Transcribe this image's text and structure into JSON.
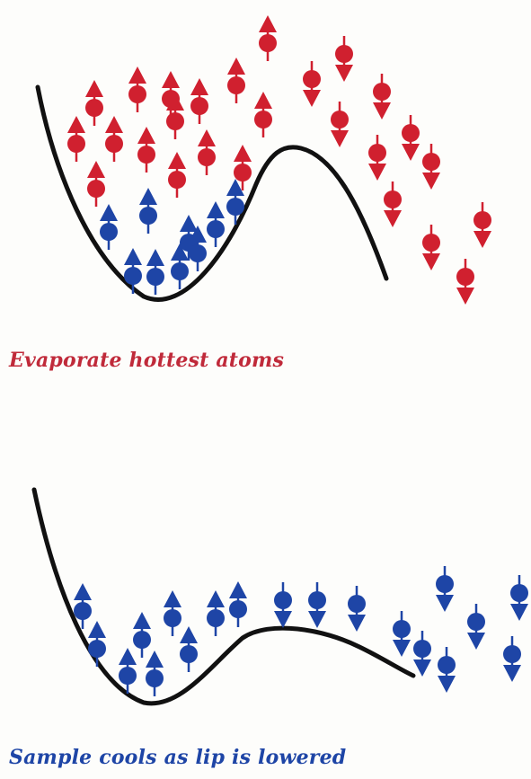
{
  "colors": {
    "hot_atom": "#d0202f",
    "cold_atom": "#1e45a6",
    "trap_curve": "#111111",
    "background": "#fdfdfb"
  },
  "panels": [
    {
      "caption": "Evaporate hottest atoms",
      "caption_color": "#c02a3a",
      "trap_icon": "potential-well-with-lip",
      "atom_icon": "spin-arrow-atom"
    },
    {
      "caption": "Sample cools as lip is lowered",
      "caption_color": "#1e45a6",
      "trap_icon": "potential-well-lowered-lip",
      "atom_icon": "spin-arrow-atom"
    }
  ]
}
